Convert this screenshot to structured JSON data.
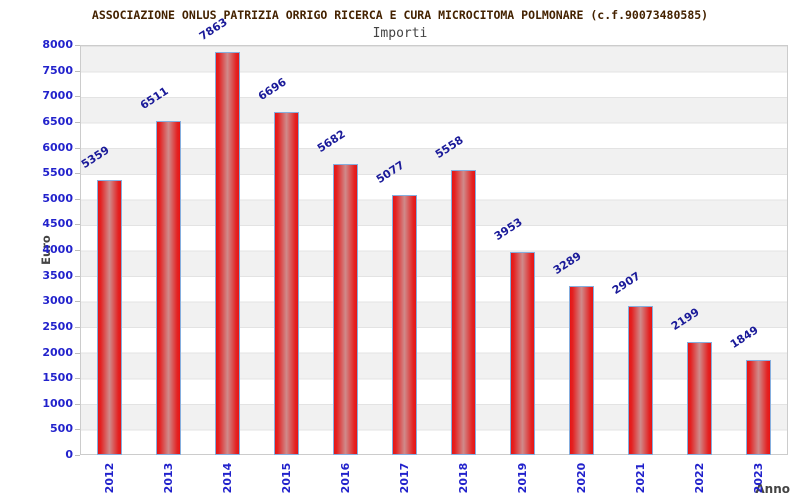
{
  "chart_data": {
    "type": "bar",
    "title": "ASSOCIAZIONE ONLUS PATRIZIA ORRIGO RICERCA E CURA MICROCITOMA POLMONARE (c.f.90073480585)",
    "subtitle": "Importi",
    "categories": [
      "2012",
      "2013",
      "2014",
      "2015",
      "2016",
      "2017",
      "2018",
      "2019",
      "2020",
      "2021",
      "2022",
      "2023"
    ],
    "values": [
      5359,
      6511,
      7863,
      6696,
      5682,
      5077,
      5558,
      3953,
      3289,
      2907,
      2199,
      1849
    ],
    "xlabel": "Anno",
    "ylabel": "Euro",
    "ylim": [
      0,
      8000
    ],
    "ytick_step": 500,
    "legend": "none",
    "grid": "horizontal-bands",
    "colors": {
      "title": "#442200",
      "subtitle": "#444444",
      "bar_fill": "#e81414",
      "bar_center_sheen": "#cf8b8b",
      "bar_border": "#85aede",
      "axis_tick_labels": "#2222cc",
      "value_labels": "#1a1a99",
      "band_gray": "#f1f1f1",
      "band_white": "#ffffff",
      "plot_border": "#cccccc"
    }
  }
}
